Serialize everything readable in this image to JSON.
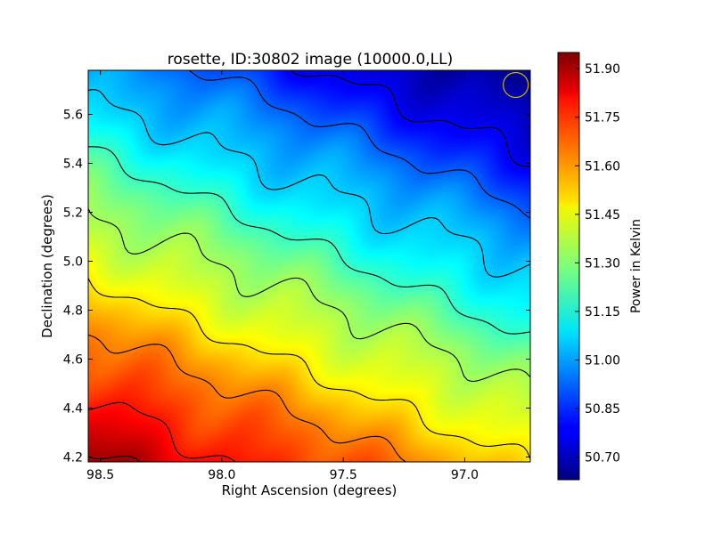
{
  "chart_data": {
    "type": "heatmap",
    "title": "rosette, ID:30802 image (10000.0,LL)",
    "xlabel": "Right Ascension (degrees)",
    "ylabel": "Declination (degrees)",
    "xlim": [
      98.55,
      96.73
    ],
    "ylim": [
      4.18,
      5.78
    ],
    "x_ticks": [
      98.5,
      98.0,
      97.5,
      97.0
    ],
    "x_tick_labels": [
      "98.5",
      "98.0",
      "97.5",
      "97.0"
    ],
    "y_ticks": [
      4.2,
      4.4,
      4.6,
      4.8,
      5.0,
      5.2,
      5.4,
      5.6
    ],
    "y_tick_labels": [
      "4.2",
      "4.4",
      "4.6",
      "4.8",
      "5.0",
      "5.2",
      "5.4",
      "5.6"
    ],
    "colorbar": {
      "label": "Power in Kelvin",
      "range": [
        50.63,
        51.95
      ],
      "ticks": [
        50.7,
        50.85,
        51.0,
        51.15,
        51.3,
        51.45,
        51.6,
        51.75,
        51.9
      ],
      "tick_labels": [
        "50.70",
        "50.85",
        "51.00",
        "51.15",
        "51.30",
        "51.45",
        "51.60",
        "51.75",
        "51.90"
      ],
      "colormap": "jet"
    },
    "field_model": {
      "description": "power increases toward lower-left (low Dec, high RA); bands slope downward to the right",
      "value_at_top_right": 50.65,
      "value_at_bottom_left": 51.93
    },
    "contour_levels": [
      50.78,
      50.92,
      51.06,
      51.2,
      51.34,
      51.48,
      51.62,
      51.76,
      51.9
    ],
    "beam_marker": {
      "ra": 96.79,
      "dec": 5.72,
      "color": "#c8b400"
    }
  }
}
